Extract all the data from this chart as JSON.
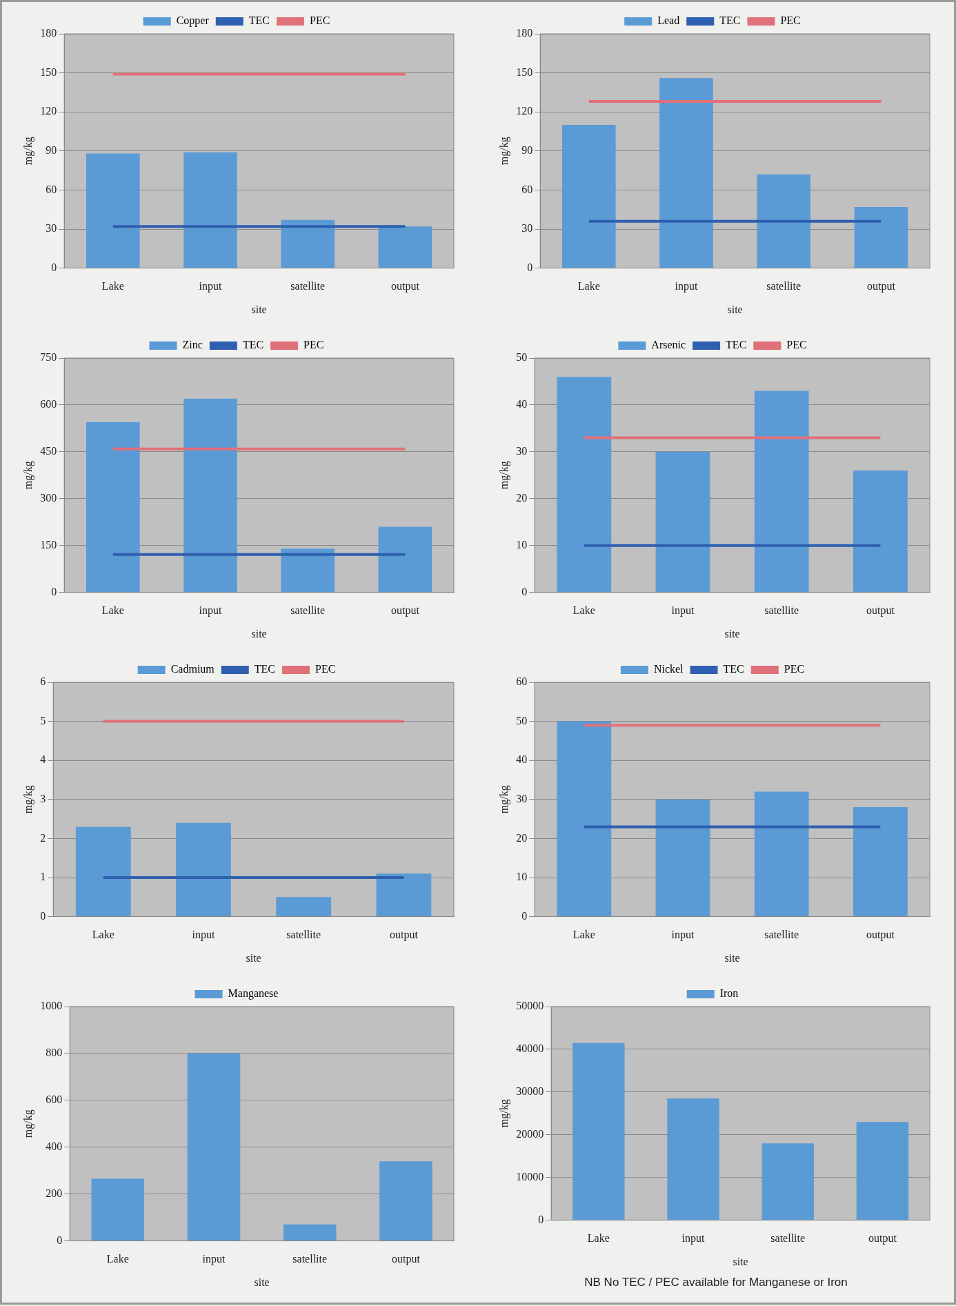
{
  "chart_data": [
    {
      "type": "bar",
      "categories": [
        "Lake",
        "input",
        "satellite",
        "output"
      ],
      "xlabel": "site",
      "ylabel": "mg/kg",
      "ylim": [
        0,
        180
      ],
      "yticks": [
        0,
        30,
        60,
        90,
        120,
        150,
        180
      ],
      "grid": "y",
      "legend": "top",
      "marker": "none",
      "series": [
        {
          "name": "Copper",
          "color": "#5b9bd5",
          "values": [
            88,
            89,
            37,
            32
          ]
        },
        {
          "name": "TEC",
          "type": "line",
          "color": "#2e5fb0",
          "values": [
            32,
            32,
            32,
            32
          ]
        },
        {
          "name": "PEC",
          "type": "line",
          "color": "#e0707a",
          "values": [
            149,
            149,
            149,
            149
          ]
        }
      ]
    },
    {
      "type": "bar",
      "categories": [
        "Lake",
        "input",
        "satellite",
        "output"
      ],
      "xlabel": "site",
      "ylabel": "mg/kg",
      "ylim": [
        0,
        180
      ],
      "yticks": [
        0,
        30,
        60,
        90,
        120,
        150,
        180
      ],
      "grid": "y",
      "legend": "top",
      "marker": "none",
      "series": [
        {
          "name": "Lead",
          "color": "#5b9bd5",
          "values": [
            110,
            146,
            72,
            47
          ]
        },
        {
          "name": "TEC",
          "type": "line",
          "color": "#2e5fb0",
          "values": [
            36,
            36,
            36,
            36
          ]
        },
        {
          "name": "PEC",
          "type": "line",
          "color": "#e0707a",
          "values": [
            128,
            128,
            128,
            128
          ]
        }
      ]
    },
    {
      "type": "bar",
      "categories": [
        "Lake",
        "input",
        "satellite",
        "output"
      ],
      "xlabel": "site",
      "ylabel": "mg/kg",
      "ylim": [
        0,
        750
      ],
      "yticks": [
        0,
        150,
        300,
        450,
        600,
        750
      ],
      "grid": "y",
      "legend": "top",
      "marker": "none",
      "series": [
        {
          "name": "Zinc",
          "color": "#5b9bd5",
          "values": [
            545,
            620,
            140,
            210
          ]
        },
        {
          "name": "TEC",
          "type": "line",
          "color": "#2e5fb0",
          "values": [
            121,
            121,
            121,
            121
          ]
        },
        {
          "name": "PEC",
          "type": "line",
          "color": "#e0707a",
          "values": [
            459,
            459,
            459,
            459
          ]
        }
      ]
    },
    {
      "type": "bar",
      "categories": [
        "Lake",
        "input",
        "satellite",
        "output"
      ],
      "xlabel": "site",
      "ylabel": "mg/kg",
      "ylim": [
        0,
        50
      ],
      "yticks": [
        0,
        10,
        20,
        30,
        40,
        50
      ],
      "grid": "y",
      "legend": "top",
      "marker": "none",
      "series": [
        {
          "name": "Arsenic",
          "color": "#5b9bd5",
          "values": [
            46,
            30,
            43,
            26
          ]
        },
        {
          "name": "TEC",
          "type": "line",
          "color": "#2e5fb0",
          "values": [
            10,
            10,
            10,
            10
          ]
        },
        {
          "name": "PEC",
          "type": "line",
          "color": "#e0707a",
          "values": [
            33,
            33,
            33,
            33
          ]
        }
      ]
    },
    {
      "type": "bar",
      "categories": [
        "Lake",
        "input",
        "satellite",
        "output"
      ],
      "xlabel": "site",
      "ylabel": "mg/kg",
      "ylim": [
        0,
        6
      ],
      "yticks": [
        0,
        1,
        2,
        3,
        4,
        5,
        6
      ],
      "grid": "y",
      "legend": "top",
      "marker": "none",
      "series": [
        {
          "name": "Cadmium",
          "color": "#5b9bd5",
          "values": [
            2.3,
            2.4,
            0.5,
            1.1
          ]
        },
        {
          "name": "TEC",
          "type": "line",
          "color": "#2e5fb0",
          "values": [
            1,
            1,
            1,
            1
          ]
        },
        {
          "name": "PEC",
          "type": "line",
          "color": "#e0707a",
          "values": [
            5,
            5,
            5,
            5
          ]
        }
      ]
    },
    {
      "type": "bar",
      "categories": [
        "Lake",
        "input",
        "satellite",
        "output"
      ],
      "xlabel": "site",
      "ylabel": "mg/kg",
      "ylim": [
        0,
        60
      ],
      "yticks": [
        0,
        10,
        20,
        30,
        40,
        50,
        60
      ],
      "grid": "y",
      "legend": "top",
      "marker": "none",
      "series": [
        {
          "name": "Nickel",
          "color": "#5b9bd5",
          "values": [
            50,
            30,
            32,
            28
          ]
        },
        {
          "name": "TEC",
          "type": "line",
          "color": "#2e5fb0",
          "values": [
            23,
            23,
            23,
            23
          ]
        },
        {
          "name": "PEC",
          "type": "line",
          "color": "#e0707a",
          "values": [
            49,
            49,
            49,
            49
          ]
        }
      ]
    },
    {
      "type": "bar",
      "categories": [
        "Lake",
        "input",
        "satellite",
        "output"
      ],
      "xlabel": "site",
      "ylabel": "mg/kg",
      "ylim": [
        0,
        1000
      ],
      "yticks": [
        0,
        200,
        400,
        600,
        800,
        1000
      ],
      "grid": "y",
      "legend": "top",
      "series": [
        {
          "name": "Manganese",
          "color": "#5b9bd5",
          "values": [
            265,
            800,
            70,
            340
          ]
        }
      ]
    },
    {
      "type": "bar",
      "categories": [
        "Lake",
        "input",
        "satellite",
        "output"
      ],
      "xlabel": "site",
      "ylabel": "mg/kg",
      "ylim": [
        0,
        50000
      ],
      "yticks": [
        0,
        10000,
        20000,
        30000,
        40000,
        50000
      ],
      "grid": "y",
      "legend": "top",
      "annotations": [
        "NB  No TEC / PEC available for Manganese or Iron"
      ],
      "series": [
        {
          "name": "Iron",
          "color": "#5b9bd5",
          "values": [
            41500,
            28500,
            18000,
            23000
          ]
        }
      ]
    }
  ]
}
